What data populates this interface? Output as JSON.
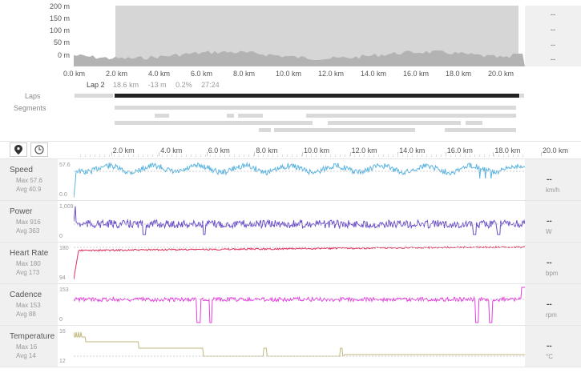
{
  "elevation": {
    "y_ticks": [
      "200 m",
      "150 m",
      "100 m",
      "50 m",
      "0 m"
    ],
    "x_ticks": [
      "0.0 km",
      "2.0 km",
      "4.0 km",
      "6.0 km",
      "8.0 km",
      "10.0 km",
      "12.0 km",
      "14.0 km",
      "16.0 km",
      "18.0 km",
      "20.0 km"
    ],
    "side_values": [
      "--",
      "--",
      "--",
      "--"
    ]
  },
  "lap": {
    "name": "Lap 2",
    "distance": "18.6 km",
    "elev": "-13 m",
    "grade": "0.2%",
    "time": "27:24"
  },
  "labels": {
    "laps": "Laps",
    "segments": "Segments"
  },
  "chart_x_ticks": [
    "2.0 km",
    "4.0 km",
    "6.0 km",
    "8.0 km",
    "10.0 km",
    "12.0 km",
    "14.0 km",
    "16.0 km",
    "18.0 km",
    "20.0 km"
  ],
  "tabs": {
    "distance_icon": "map-marker-icon",
    "time_icon": "clock-icon"
  },
  "metrics": [
    {
      "key": "speed",
      "name": "Speed",
      "max": "Max 57.6",
      "avg": "Avg 40.9",
      "scale_top": "57.6",
      "scale_bottom": "0.0",
      "value": "--",
      "unit": "km/h",
      "color": "#5ab4e0"
    },
    {
      "key": "power",
      "name": "Power",
      "max": "Max 916",
      "avg": "Avg 363",
      "scale_top": "1,009",
      "scale_bottom": "0",
      "value": "--",
      "unit": "W",
      "color": "#6a4fc9"
    },
    {
      "key": "hr",
      "name": "Heart Rate",
      "max": "Max 180",
      "avg": "Avg 173",
      "scale_top": "180",
      "scale_bottom": "94",
      "value": "--",
      "unit": "bpm",
      "color": "#e0335e"
    },
    {
      "key": "cadence",
      "name": "Cadence",
      "max": "Max 153",
      "avg": "Avg 88",
      "scale_top": "153",
      "scale_bottom": "0",
      "value": "--",
      "unit": "rpm",
      "color": "#e63de0"
    },
    {
      "key": "temp",
      "name": "Temperature",
      "max": "Max 16",
      "avg": "Avg 14",
      "scale_top": "16",
      "scale_bottom": "12",
      "value": "--",
      "unit": "°C",
      "color": "#c2b77a"
    }
  ]
}
